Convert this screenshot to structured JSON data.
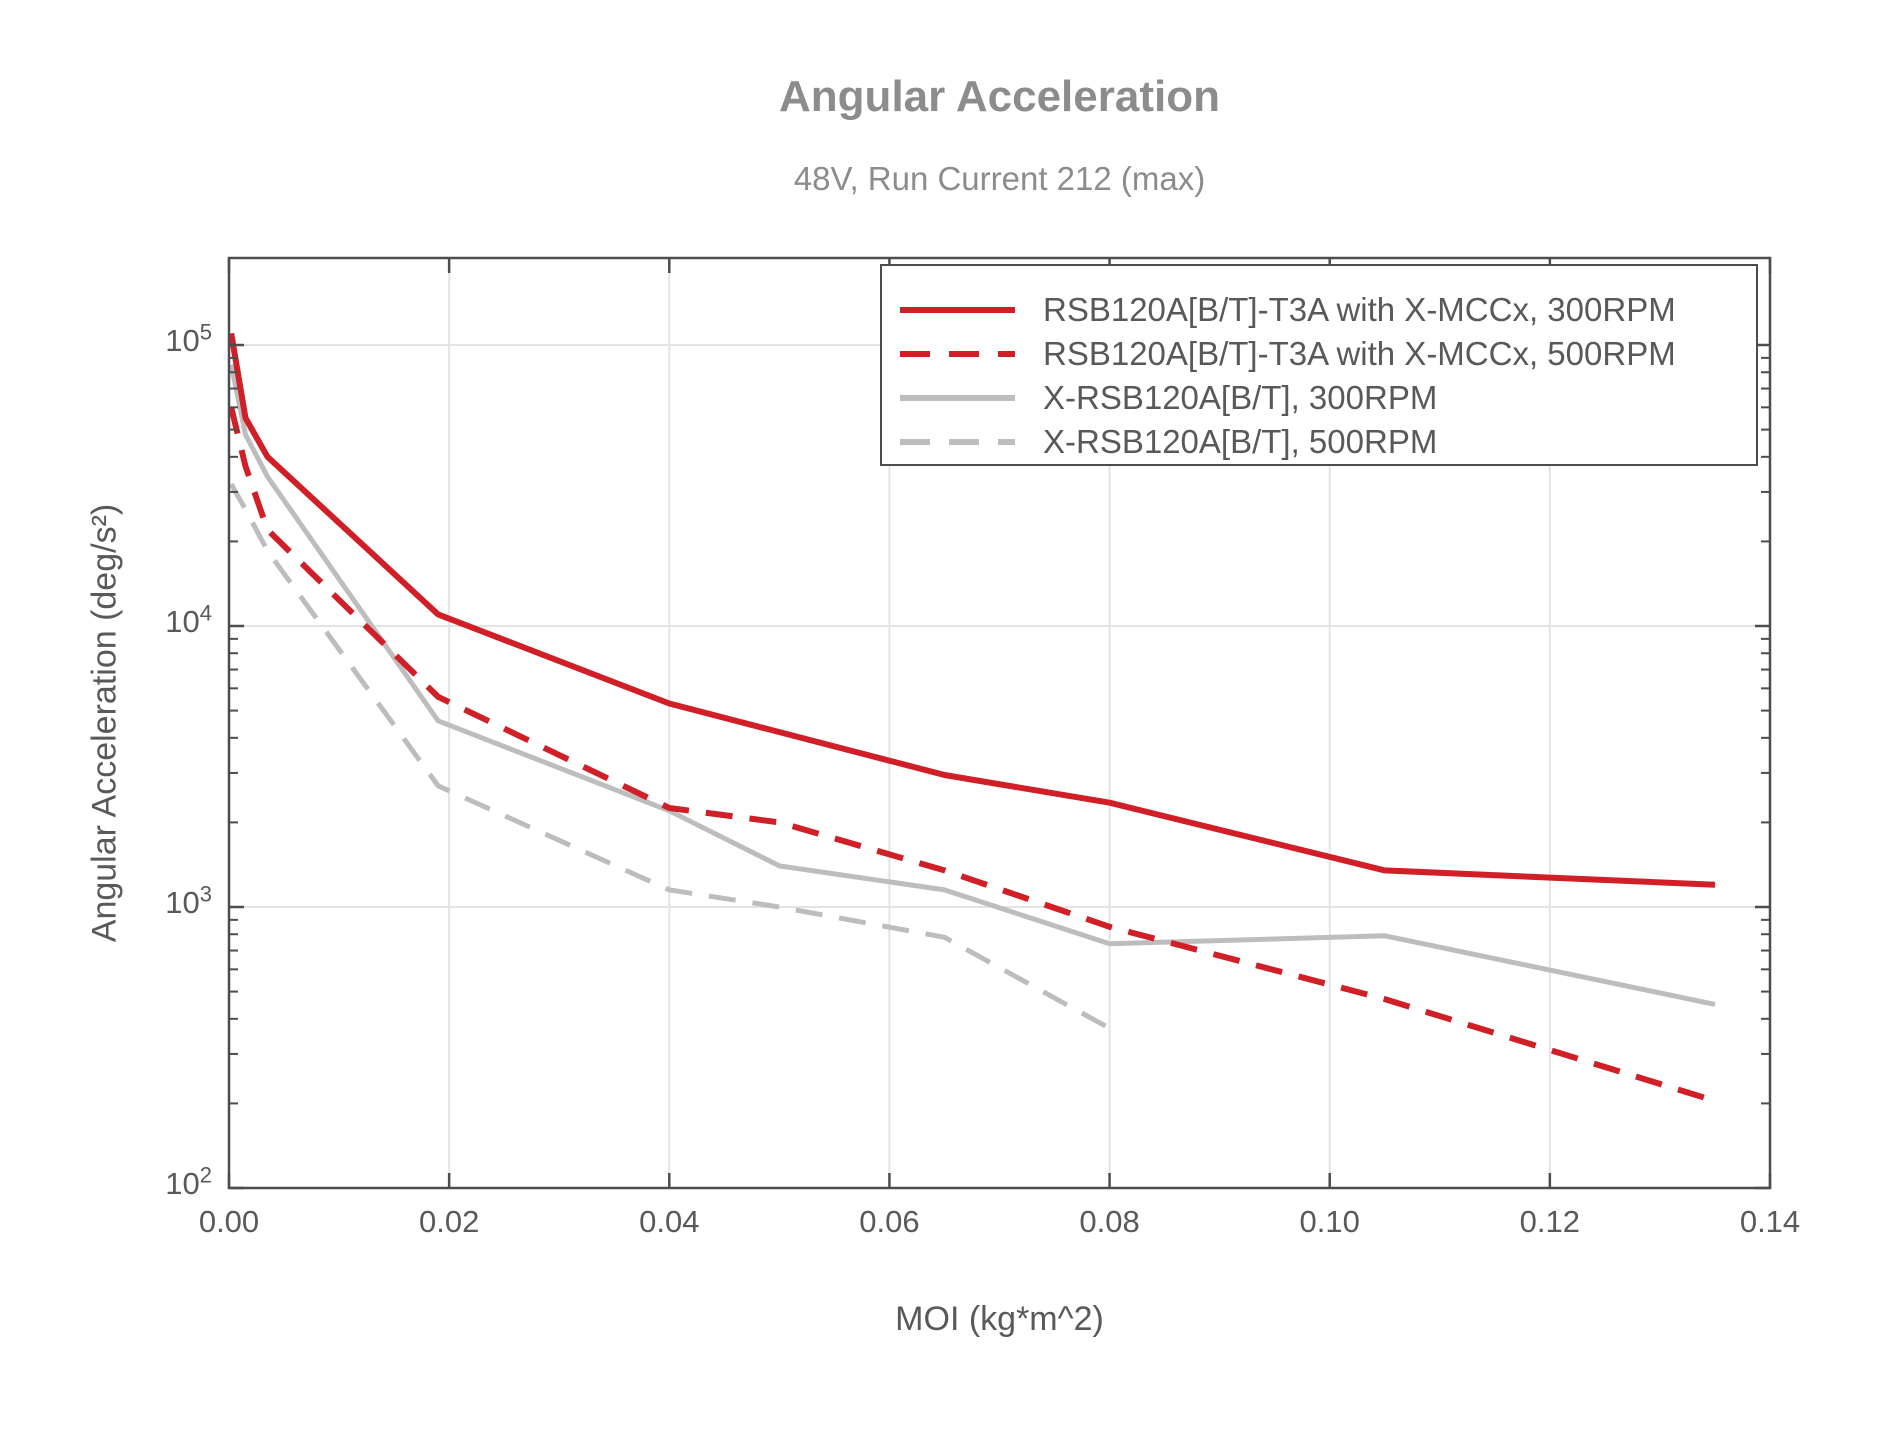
{
  "chart_data": {
    "type": "line",
    "title": "Angular Acceleration",
    "subtitle": "48V, Run Current 212 (max)",
    "xlabel": "MOI (kg*m^2)",
    "ylabel": "Angular Acceleration (deg/s²)",
    "x_axis": {
      "min": 0,
      "max": 0.14,
      "tick_values": [
        0.0,
        0.02,
        0.04,
        0.06,
        0.08,
        0.1,
        0.12,
        0.14
      ],
      "tick_labels": [
        "0.00",
        "0.02",
        "0.04",
        "0.06",
        "0.08",
        "0.10",
        "0.12",
        "0.14"
      ]
    },
    "y_axis": {
      "scale": "log",
      "min": 100,
      "max": 204000,
      "tick_base": "10",
      "tick_exponents": [
        2,
        3,
        4,
        5
      ]
    },
    "grid": {
      "major": true,
      "minor": false,
      "color": "#e3e3e3"
    },
    "legend_position": "top-right",
    "colors": {
      "red": "#d01f27",
      "gray": "#bdbdbd",
      "frame": "#4d4d4d",
      "text": "#595959",
      "title": "#8c8c8c"
    },
    "series": [
      {
        "name": "RSB120A[B/T]-T3A with X-MCCx, 300RPM",
        "color": "#d01f27",
        "style": "solid",
        "points": [
          [
            0.0002,
            110000
          ],
          [
            0.0015,
            55000
          ],
          [
            0.0035,
            40000
          ],
          [
            0.019,
            11000
          ],
          [
            0.04,
            5300
          ],
          [
            0.065,
            2950
          ],
          [
            0.08,
            2350
          ],
          [
            0.105,
            1350
          ],
          [
            0.135,
            1200
          ]
        ]
      },
      {
        "name": "RSB120A[B/T]-T3A with X-MCCx, 500RPM",
        "color": "#d01f27",
        "style": "dashed",
        "points": [
          [
            0.0002,
            60000
          ],
          [
            0.0015,
            37000
          ],
          [
            0.0035,
            22000
          ],
          [
            0.019,
            5600
          ],
          [
            0.04,
            2250
          ],
          [
            0.05,
            2000
          ],
          [
            0.065,
            1350
          ],
          [
            0.08,
            850
          ],
          [
            0.105,
            470
          ],
          [
            0.134,
            210
          ]
        ]
      },
      {
        "name": "X-RSB120A[B/T], 300RPM",
        "color": "#bdbdbd",
        "style": "solid",
        "points": [
          [
            0.0002,
            85000
          ],
          [
            0.0015,
            48000
          ],
          [
            0.0035,
            34000
          ],
          [
            0.019,
            4600
          ],
          [
            0.04,
            2200
          ],
          [
            0.05,
            1400
          ],
          [
            0.065,
            1150
          ],
          [
            0.08,
            740
          ],
          [
            0.105,
            790
          ],
          [
            0.135,
            450
          ]
        ]
      },
      {
        "name": "X-RSB120A[B/T], 500RPM",
        "color": "#bdbdbd",
        "style": "dashed",
        "points": [
          [
            0.0002,
            32000
          ],
          [
            0.0015,
            26000
          ],
          [
            0.0035,
            18500
          ],
          [
            0.019,
            2700
          ],
          [
            0.04,
            1150
          ],
          [
            0.05,
            1000
          ],
          [
            0.065,
            780
          ],
          [
            0.08,
            370
          ]
        ]
      }
    ]
  }
}
